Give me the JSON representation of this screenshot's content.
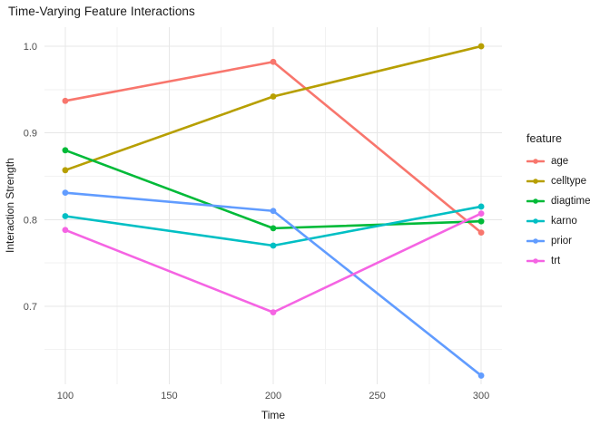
{
  "title": "Time-Varying Feature Interactions",
  "chart_data": {
    "type": "line",
    "title": "Time-Varying Feature Interactions",
    "xlabel": "Time",
    "ylabel": "Interaction Strength",
    "legend_title": "feature",
    "legend_position": "right",
    "grid": true,
    "x": [
      100,
      200,
      300
    ],
    "series": [
      {
        "name": "age",
        "color": "#F8766D",
        "values": [
          0.937,
          0.982,
          0.785
        ]
      },
      {
        "name": "celltype",
        "color": "#B79F00",
        "values": [
          0.857,
          0.942,
          1.0
        ]
      },
      {
        "name": "diagtime",
        "color": "#00BA38",
        "values": [
          0.88,
          0.79,
          0.798
        ]
      },
      {
        "name": "karno",
        "color": "#00BFC4",
        "values": [
          0.804,
          0.77,
          0.815
        ]
      },
      {
        "name": "prior",
        "color": "#619CFF",
        "values": [
          0.831,
          0.81,
          0.62
        ]
      },
      {
        "name": "trt",
        "color": "#F564E3",
        "values": [
          0.788,
          0.693,
          0.807
        ]
      }
    ],
    "xlim": [
      90,
      310
    ],
    "ylim": [
      0.61,
      1.022
    ],
    "x_ticks": [
      100,
      150,
      200,
      250,
      300
    ],
    "x_tick_labels": [
      "100",
      "150",
      "200",
      "250",
      "300"
    ],
    "x_minor_ticks": [
      125,
      175,
      225,
      275
    ],
    "y_ticks": [
      0.7,
      0.8,
      0.9,
      1.0
    ],
    "y_tick_labels": [
      "0.7",
      "0.8",
      "0.9",
      "1.0"
    ],
    "y_minor_ticks": [
      0.65,
      0.75,
      0.85,
      0.95
    ]
  },
  "colors": {
    "background": "#FFFFFF",
    "grid_major": "#E7E7E7",
    "grid_minor": "#F2F2F2",
    "tick_label": "#4D4D4D",
    "text": "#1A1A1A"
  }
}
